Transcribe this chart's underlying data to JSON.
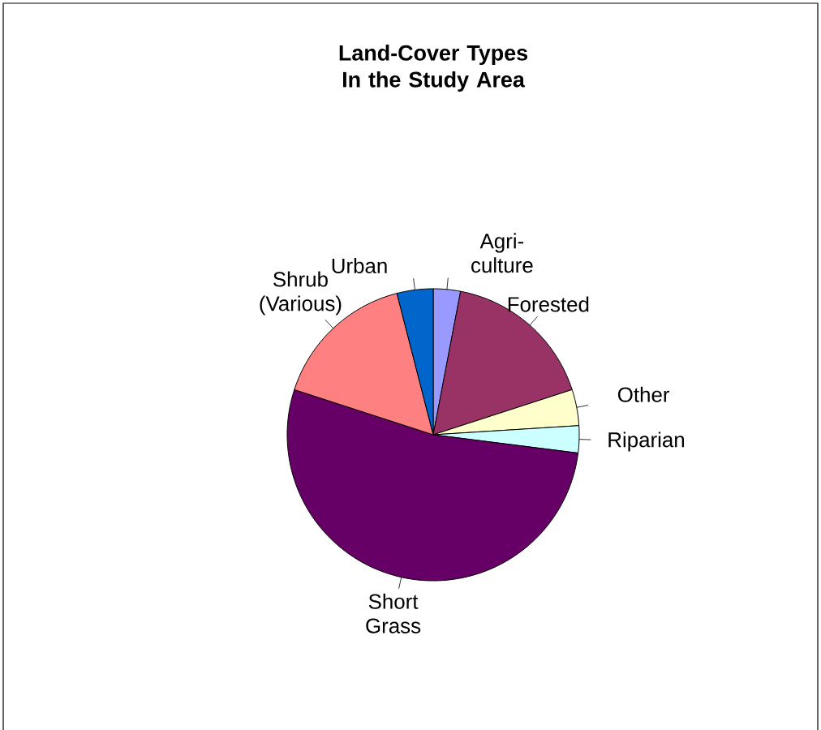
{
  "chart_data": {
    "type": "pie",
    "title": "Land-Cover Types In the Study Area",
    "categories": [
      "Agri-culture",
      "Forested",
      "Other",
      "Riparian",
      "Short Grass",
      "Shrub (Various)",
      "Urban"
    ],
    "values": [
      3,
      17,
      4,
      3,
      53,
      16,
      4
    ],
    "colors": [
      "#9999ff",
      "#993366",
      "#ffffcc",
      "#ccffff",
      "#660066",
      "#ff8080",
      "#0066cc"
    ]
  }
}
